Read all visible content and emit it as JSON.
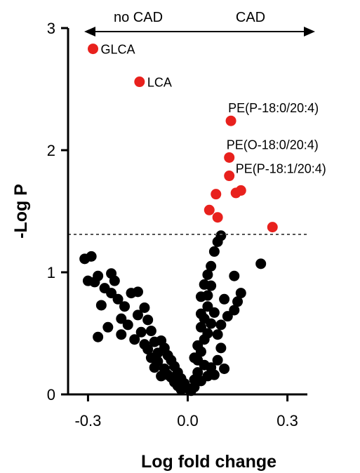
{
  "chart_data": {
    "type": "scatter",
    "title": "",
    "xlabel": "Log fold change",
    "ylabel": "-Log P",
    "xlim": [
      -0.36,
      0.36
    ],
    "ylim": [
      0,
      3
    ],
    "xticks": [
      -0.3,
      0.0,
      0.3
    ],
    "xtick_labels": [
      "-0.3",
      "0.0",
      "0.3"
    ],
    "yticks": [
      0,
      1,
      2,
      3
    ],
    "ytick_labels": [
      "0",
      "1",
      "2",
      "3"
    ],
    "threshold_y": 1.31,
    "threshold_style": "dashed",
    "grid": false,
    "direction_labels": {
      "left": "no CAD",
      "right": "CAD"
    },
    "colors": {
      "significant": "#e8211d",
      "nonsignificant": "#000000"
    },
    "significant_points": [
      {
        "x": -0.285,
        "y": 2.83,
        "label": "GLCA"
      },
      {
        "x": -0.145,
        "y": 2.56,
        "label": "LCA"
      },
      {
        "x": 0.13,
        "y": 2.24,
        "label": "PE(P-18:0/20:4)"
      },
      {
        "x": 0.125,
        "y": 1.94,
        "label": "PE(O-18:0/20:4)"
      },
      {
        "x": 0.125,
        "y": 1.79,
        "label": "PE(P-18:1/20:4)"
      },
      {
        "x": 0.085,
        "y": 1.64,
        "label": ""
      },
      {
        "x": 0.145,
        "y": 1.65,
        "label": ""
      },
      {
        "x": 0.16,
        "y": 1.67,
        "label": ""
      },
      {
        "x": 0.065,
        "y": 1.51,
        "label": ""
      },
      {
        "x": 0.09,
        "y": 1.45,
        "label": ""
      },
      {
        "x": 0.255,
        "y": 1.37,
        "label": ""
      }
    ],
    "nonsignificant_points": [
      [
        -0.31,
        1.11
      ],
      [
        -0.29,
        1.13
      ],
      [
        -0.3,
        0.93
      ],
      [
        -0.28,
        0.92
      ],
      [
        -0.27,
        0.97
      ],
      [
        -0.23,
        0.99
      ],
      [
        -0.22,
        0.93
      ],
      [
        -0.25,
        0.87
      ],
      [
        -0.26,
        0.73
      ],
      [
        -0.23,
        0.83
      ],
      [
        -0.21,
        0.78
      ],
      [
        -0.17,
        0.83
      ],
      [
        -0.15,
        0.84
      ],
      [
        -0.19,
        0.72
      ],
      [
        -0.2,
        0.62
      ],
      [
        -0.18,
        0.57
      ],
      [
        -0.24,
        0.55
      ],
      [
        -0.27,
        0.47
      ],
      [
        -0.15,
        0.65
      ],
      [
        -0.13,
        0.71
      ],
      [
        -0.12,
        0.61
      ],
      [
        -0.14,
        0.51
      ],
      [
        -0.11,
        0.52
      ],
      [
        -0.1,
        0.43
      ],
      [
        -0.12,
        0.37
      ],
      [
        -0.09,
        0.34
      ],
      [
        -0.08,
        0.44
      ],
      [
        -0.07,
        0.38
      ],
      [
        -0.06,
        0.32
      ],
      [
        -0.05,
        0.28
      ],
      [
        -0.09,
        0.27
      ],
      [
        -0.1,
        0.22
      ],
      [
        -0.07,
        0.21
      ],
      [
        -0.04,
        0.23
      ],
      [
        -0.03,
        0.18
      ],
      [
        -0.05,
        0.14
      ],
      [
        -0.02,
        0.13
      ],
      [
        -0.01,
        0.09
      ],
      [
        -0.03,
        0.07
      ],
      [
        0.0,
        0.05
      ],
      [
        0.01,
        0.03
      ],
      [
        -0.02,
        0.04
      ],
      [
        0.02,
        0.06
      ],
      [
        -0.04,
        0.1
      ],
      [
        -0.06,
        0.16
      ],
      [
        -0.08,
        0.15
      ],
      [
        -0.11,
        0.3
      ],
      [
        -0.13,
        0.41
      ],
      [
        -0.16,
        0.45
      ],
      [
        -0.2,
        0.49
      ],
      [
        0.22,
        1.07
      ],
      [
        0.14,
        0.97
      ],
      [
        0.16,
        0.83
      ],
      [
        0.15,
        0.76
      ],
      [
        0.14,
        0.69
      ],
      [
        0.11,
        0.78
      ],
      [
        0.12,
        0.64
      ],
      [
        0.1,
        0.57
      ],
      [
        0.09,
        0.49
      ],
      [
        0.1,
        0.38
      ],
      [
        0.09,
        0.28
      ],
      [
        0.07,
        0.22
      ],
      [
        0.08,
        0.16
      ],
      [
        0.11,
        0.21
      ],
      [
        0.07,
        1.05
      ],
      [
        0.06,
        0.98
      ],
      [
        0.07,
        0.89
      ],
      [
        0.06,
        0.81
      ],
      [
        0.08,
        1.17
      ],
      [
        0.09,
        1.25
      ],
      [
        0.1,
        1.3
      ],
      [
        0.05,
        0.9
      ],
      [
        0.06,
        0.72
      ],
      [
        0.05,
        0.62
      ],
      [
        0.04,
        0.55
      ],
      [
        0.05,
        0.45
      ],
      [
        0.04,
        0.35
      ],
      [
        0.03,
        0.28
      ],
      [
        0.05,
        0.24
      ],
      [
        0.03,
        0.18
      ],
      [
        0.02,
        0.12
      ],
      [
        0.04,
        0.11
      ],
      [
        0.06,
        0.15
      ],
      [
        0.03,
        0.4
      ],
      [
        0.04,
        0.66
      ],
      [
        0.02,
        0.3
      ],
      [
        0.07,
        0.58
      ],
      [
        0.08,
        0.67
      ],
      [
        0.06,
        0.5
      ],
      [
        0.04,
        0.8
      ]
    ]
  }
}
